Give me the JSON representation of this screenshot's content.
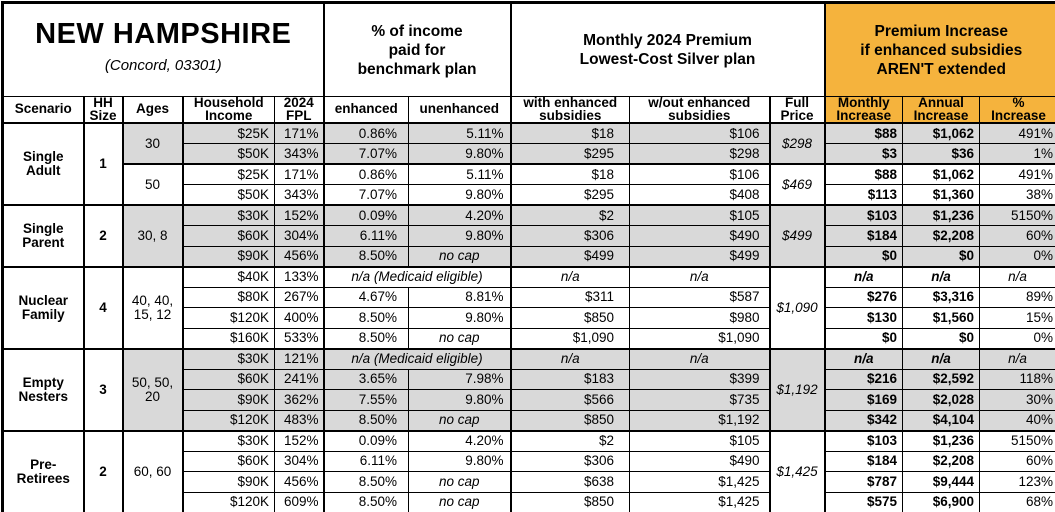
{
  "colors": {
    "orange": "#F5B33D",
    "shade": "#D9D9D9",
    "border": "#000000",
    "background": "#FFFFFF"
  },
  "header": {
    "title": "NEW HAMPSHIRE",
    "subtitle": "(Concord, 03301)",
    "income_group": "% of income\npaid for\nbenchmark plan",
    "premium_group": "Monthly 2024 Premium\nLowest-Cost Silver plan",
    "increase_group": "Premium Increase\nif enhanced subsidies\nAREN'T extended"
  },
  "columns": [
    "Scenario",
    "HH\nSize",
    "Ages",
    "Household\nIncome",
    "2024\nFPL",
    "enhanced",
    "unenhanced",
    "with enhanced\nsubsidies",
    "w/out enhanced\nsubsidies",
    "Full\nPrice",
    "Monthly\nIncrease",
    "Annual\nIncrease",
    "%\nIncrease"
  ],
  "chart_data": {
    "type": "table",
    "title": "NEW HAMPSHIRE (Concord, 03301)",
    "column_groups": [
      "% of income paid for benchmark plan",
      "Monthly 2024 Premium Lowest-Cost Silver plan",
      "Premium Increase if enhanced subsidies AREN'T extended"
    ],
    "scenarios": [
      {
        "name": "Single\nAdult",
        "hh_size": "1",
        "groups": [
          {
            "ages": "30",
            "shaded": true,
            "full_price": "$298",
            "rows": [
              {
                "income": "$25K",
                "fpl": "171%",
                "enhanced": "0.86%",
                "unenhanced": "5.11%",
                "with_sub": "$18",
                "without_sub": "$106",
                "monthly": "$88",
                "annual": "$1,062",
                "pct": "491%"
              },
              {
                "income": "$50K",
                "fpl": "343%",
                "enhanced": "7.07%",
                "unenhanced": "9.80%",
                "with_sub": "$295",
                "without_sub": "$298",
                "monthly": "$3",
                "annual": "$36",
                "pct": "1%"
              }
            ]
          },
          {
            "ages": "50",
            "shaded": false,
            "full_price": "$469",
            "rows": [
              {
                "income": "$25K",
                "fpl": "171%",
                "enhanced": "0.86%",
                "unenhanced": "5.11%",
                "with_sub": "$18",
                "without_sub": "$106",
                "monthly": "$88",
                "annual": "$1,062",
                "pct": "491%"
              },
              {
                "income": "$50K",
                "fpl": "343%",
                "enhanced": "7.07%",
                "unenhanced": "9.80%",
                "with_sub": "$295",
                "without_sub": "$408",
                "monthly": "$113",
                "annual": "$1,360",
                "pct": "38%"
              }
            ]
          }
        ]
      },
      {
        "name": "Single\nParent",
        "hh_size": "2",
        "groups": [
          {
            "ages": "30, 8",
            "shaded": true,
            "full_price": "$499",
            "rows": [
              {
                "income": "$30K",
                "fpl": "152%",
                "enhanced": "0.09%",
                "unenhanced": "4.20%",
                "with_sub": "$2",
                "without_sub": "$105",
                "monthly": "$103",
                "annual": "$1,236",
                "pct": "5150%"
              },
              {
                "income": "$60K",
                "fpl": "304%",
                "enhanced": "6.11%",
                "unenhanced": "9.80%",
                "with_sub": "$306",
                "without_sub": "$490",
                "monthly": "$184",
                "annual": "$2,208",
                "pct": "60%"
              },
              {
                "income": "$90K",
                "fpl": "456%",
                "enhanced": "8.50%",
                "unenhanced": "no cap",
                "nocap": true,
                "with_sub": "$499",
                "without_sub": "$499",
                "monthly": "$0",
                "annual": "$0",
                "pct": "0%"
              }
            ]
          }
        ]
      },
      {
        "name": "Nuclear\nFamily",
        "hh_size": "4",
        "groups": [
          {
            "ages": "40, 40,\n15, 12",
            "shaded": false,
            "full_price": "$1,090",
            "rows": [
              {
                "income": "$40K",
                "fpl": "133%",
                "note": "n/a (Medicaid eligible)",
                "na_label": "n/a"
              },
              {
                "income": "$80K",
                "fpl": "267%",
                "enhanced": "4.67%",
                "unenhanced": "8.81%",
                "with_sub": "$311",
                "without_sub": "$587",
                "monthly": "$276",
                "annual": "$3,316",
                "pct": "89%"
              },
              {
                "income": "$120K",
                "fpl": "400%",
                "enhanced": "8.50%",
                "unenhanced": "9.80%",
                "with_sub": "$850",
                "without_sub": "$980",
                "monthly": "$130",
                "annual": "$1,560",
                "pct": "15%"
              },
              {
                "income": "$160K",
                "fpl": "533%",
                "enhanced": "8.50%",
                "unenhanced": "no cap",
                "nocap": true,
                "with_sub": "$1,090",
                "without_sub": "$1,090",
                "monthly": "$0",
                "annual": "$0",
                "pct": "0%"
              }
            ]
          }
        ]
      },
      {
        "name": "Empty\nNesters",
        "hh_size": "3",
        "groups": [
          {
            "ages": "50, 50,\n20",
            "shaded": true,
            "full_price": "$1,192",
            "rows": [
              {
                "income": "$30K",
                "fpl": "121%",
                "note": "n/a (Medicaid eligible)",
                "na_label": "n/a"
              },
              {
                "income": "$60K",
                "fpl": "241%",
                "enhanced": "3.65%",
                "unenhanced": "7.98%",
                "with_sub": "$183",
                "without_sub": "$399",
                "monthly": "$216",
                "annual": "$2,592",
                "pct": "118%"
              },
              {
                "income": "$90K",
                "fpl": "362%",
                "enhanced": "7.55%",
                "unenhanced": "9.80%",
                "with_sub": "$566",
                "without_sub": "$735",
                "monthly": "$169",
                "annual": "$2,028",
                "pct": "30%"
              },
              {
                "income": "$120K",
                "fpl": "483%",
                "enhanced": "8.50%",
                "unenhanced": "no cap",
                "nocap": true,
                "with_sub": "$850",
                "without_sub": "$1,192",
                "monthly": "$342",
                "annual": "$4,104",
                "pct": "40%"
              }
            ]
          }
        ]
      },
      {
        "name": "Pre-\nRetirees",
        "hh_size": "2",
        "groups": [
          {
            "ages": "60, 60",
            "shaded": false,
            "full_price": "$1,425",
            "rows": [
              {
                "income": "$30K",
                "fpl": "152%",
                "enhanced": "0.09%",
                "unenhanced": "4.20%",
                "with_sub": "$2",
                "without_sub": "$105",
                "monthly": "$103",
                "annual": "$1,236",
                "pct": "5150%"
              },
              {
                "income": "$60K",
                "fpl": "304%",
                "enhanced": "6.11%",
                "unenhanced": "9.80%",
                "with_sub": "$306",
                "without_sub": "$490",
                "monthly": "$184",
                "annual": "$2,208",
                "pct": "60%"
              },
              {
                "income": "$90K",
                "fpl": "456%",
                "enhanced": "8.50%",
                "unenhanced": "no cap",
                "nocap": true,
                "with_sub": "$638",
                "without_sub": "$1,425",
                "monthly": "$787",
                "annual": "$9,444",
                "pct": "123%"
              },
              {
                "income": "$120K",
                "fpl": "609%",
                "enhanced": "8.50%",
                "unenhanced": "no cap",
                "nocap": true,
                "with_sub": "$850",
                "without_sub": "$1,425",
                "monthly": "$575",
                "annual": "$6,900",
                "pct": "68%"
              }
            ]
          }
        ]
      }
    ]
  }
}
